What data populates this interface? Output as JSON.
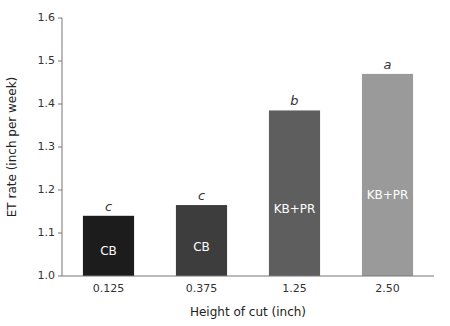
{
  "chart_data": {
    "type": "bar",
    "xlabel": "Height of cut (inch)",
    "ylabel": "ET rate (inch per week)",
    "categories": [
      "0.125",
      "0.375",
      "1.25",
      "2.50"
    ],
    "values": [
      1.14,
      1.165,
      1.385,
      1.47
    ],
    "colors": [
      "#1c1c1c",
      "#3d3d3d",
      "#5e5e5e",
      "#9a9a9a"
    ],
    "annotations": {
      "bar_labels": [
        "CB",
        "CB",
        "KB+PR",
        "KB+PR"
      ],
      "sig_letters": [
        "c",
        "c",
        "b",
        "a"
      ]
    },
    "ylim": [
      1.0,
      1.6
    ],
    "yticks": [
      {
        "value": 1.0,
        "label": "1.0"
      },
      1.1,
      1.2,
      1.3,
      1.4,
      1.5,
      {
        "value": 1.6,
        "label": "1.6"
      }
    ],
    "grid": false
  }
}
